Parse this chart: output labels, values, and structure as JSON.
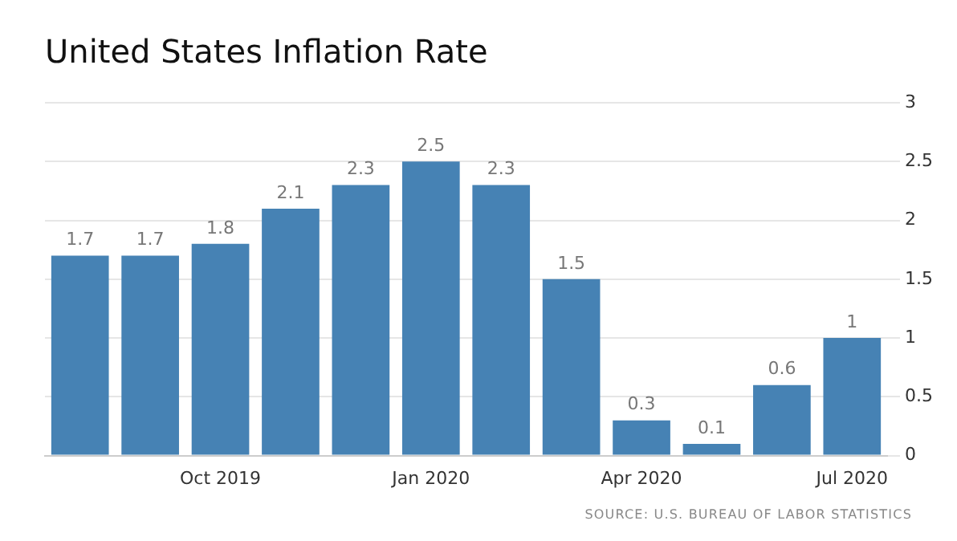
{
  "chart_data": {
    "type": "bar",
    "title": "United States Inflation Rate",
    "categories": [
      null,
      null,
      "Oct 2019",
      null,
      null,
      "Jan 2020",
      null,
      null,
      "Apr 2020",
      null,
      null,
      "Jul 2020"
    ],
    "values": [
      1.7,
      1.7,
      1.8,
      2.1,
      2.3,
      2.5,
      2.3,
      1.5,
      0.3,
      0.1,
      0.6,
      1
    ],
    "color": "#4682b4",
    "ylim": [
      0,
      3
    ],
    "yticks": [
      0,
      0.5,
      1,
      1.5,
      2,
      2.5,
      3
    ],
    "grid": "y",
    "data_labels": true,
    "legend": false,
    "annotations": [
      "SOURCE: U.S. BUREAU OF LABOR STATISTICS"
    ]
  }
}
